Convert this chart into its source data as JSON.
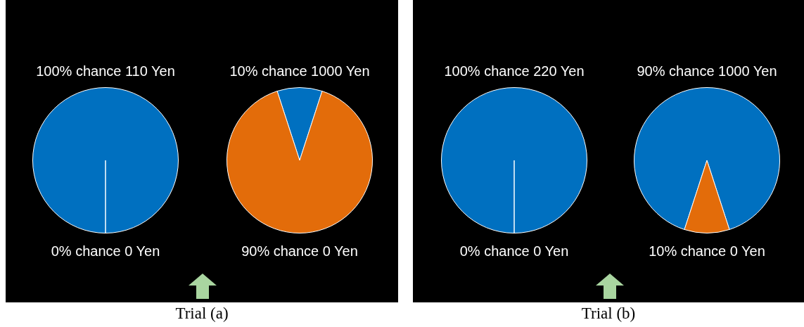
{
  "chart_data": [
    {
      "type": "pie",
      "categories": [
        "100% chance 110 Yen",
        "0% chance 0 Yen"
      ],
      "values": [
        100,
        0
      ],
      "colors": [
        "#0070c0",
        "#e36c0a"
      ],
      "annotations": [
        "Trial (a)"
      ]
    },
    {
      "type": "pie",
      "categories": [
        "10% chance 1000 Yen",
        "90% chance 0 Yen"
      ],
      "values": [
        10,
        90
      ],
      "colors": [
        "#0070c0",
        "#e36c0a"
      ]
    },
    {
      "type": "pie",
      "categories": [
        "100% chance 220 Yen",
        "0% chance 0 Yen"
      ],
      "values": [
        100,
        0
      ],
      "colors": [
        "#0070c0",
        "#e36c0a"
      ],
      "annotations": [
        "Trial (b)"
      ]
    },
    {
      "type": "pie",
      "categories": [
        "90% chance 1000 Yen",
        "10% chance 0 Yen"
      ],
      "values": [
        90,
        10
      ],
      "colors": [
        "#0070c0",
        "#e36c0a"
      ]
    }
  ]
}
